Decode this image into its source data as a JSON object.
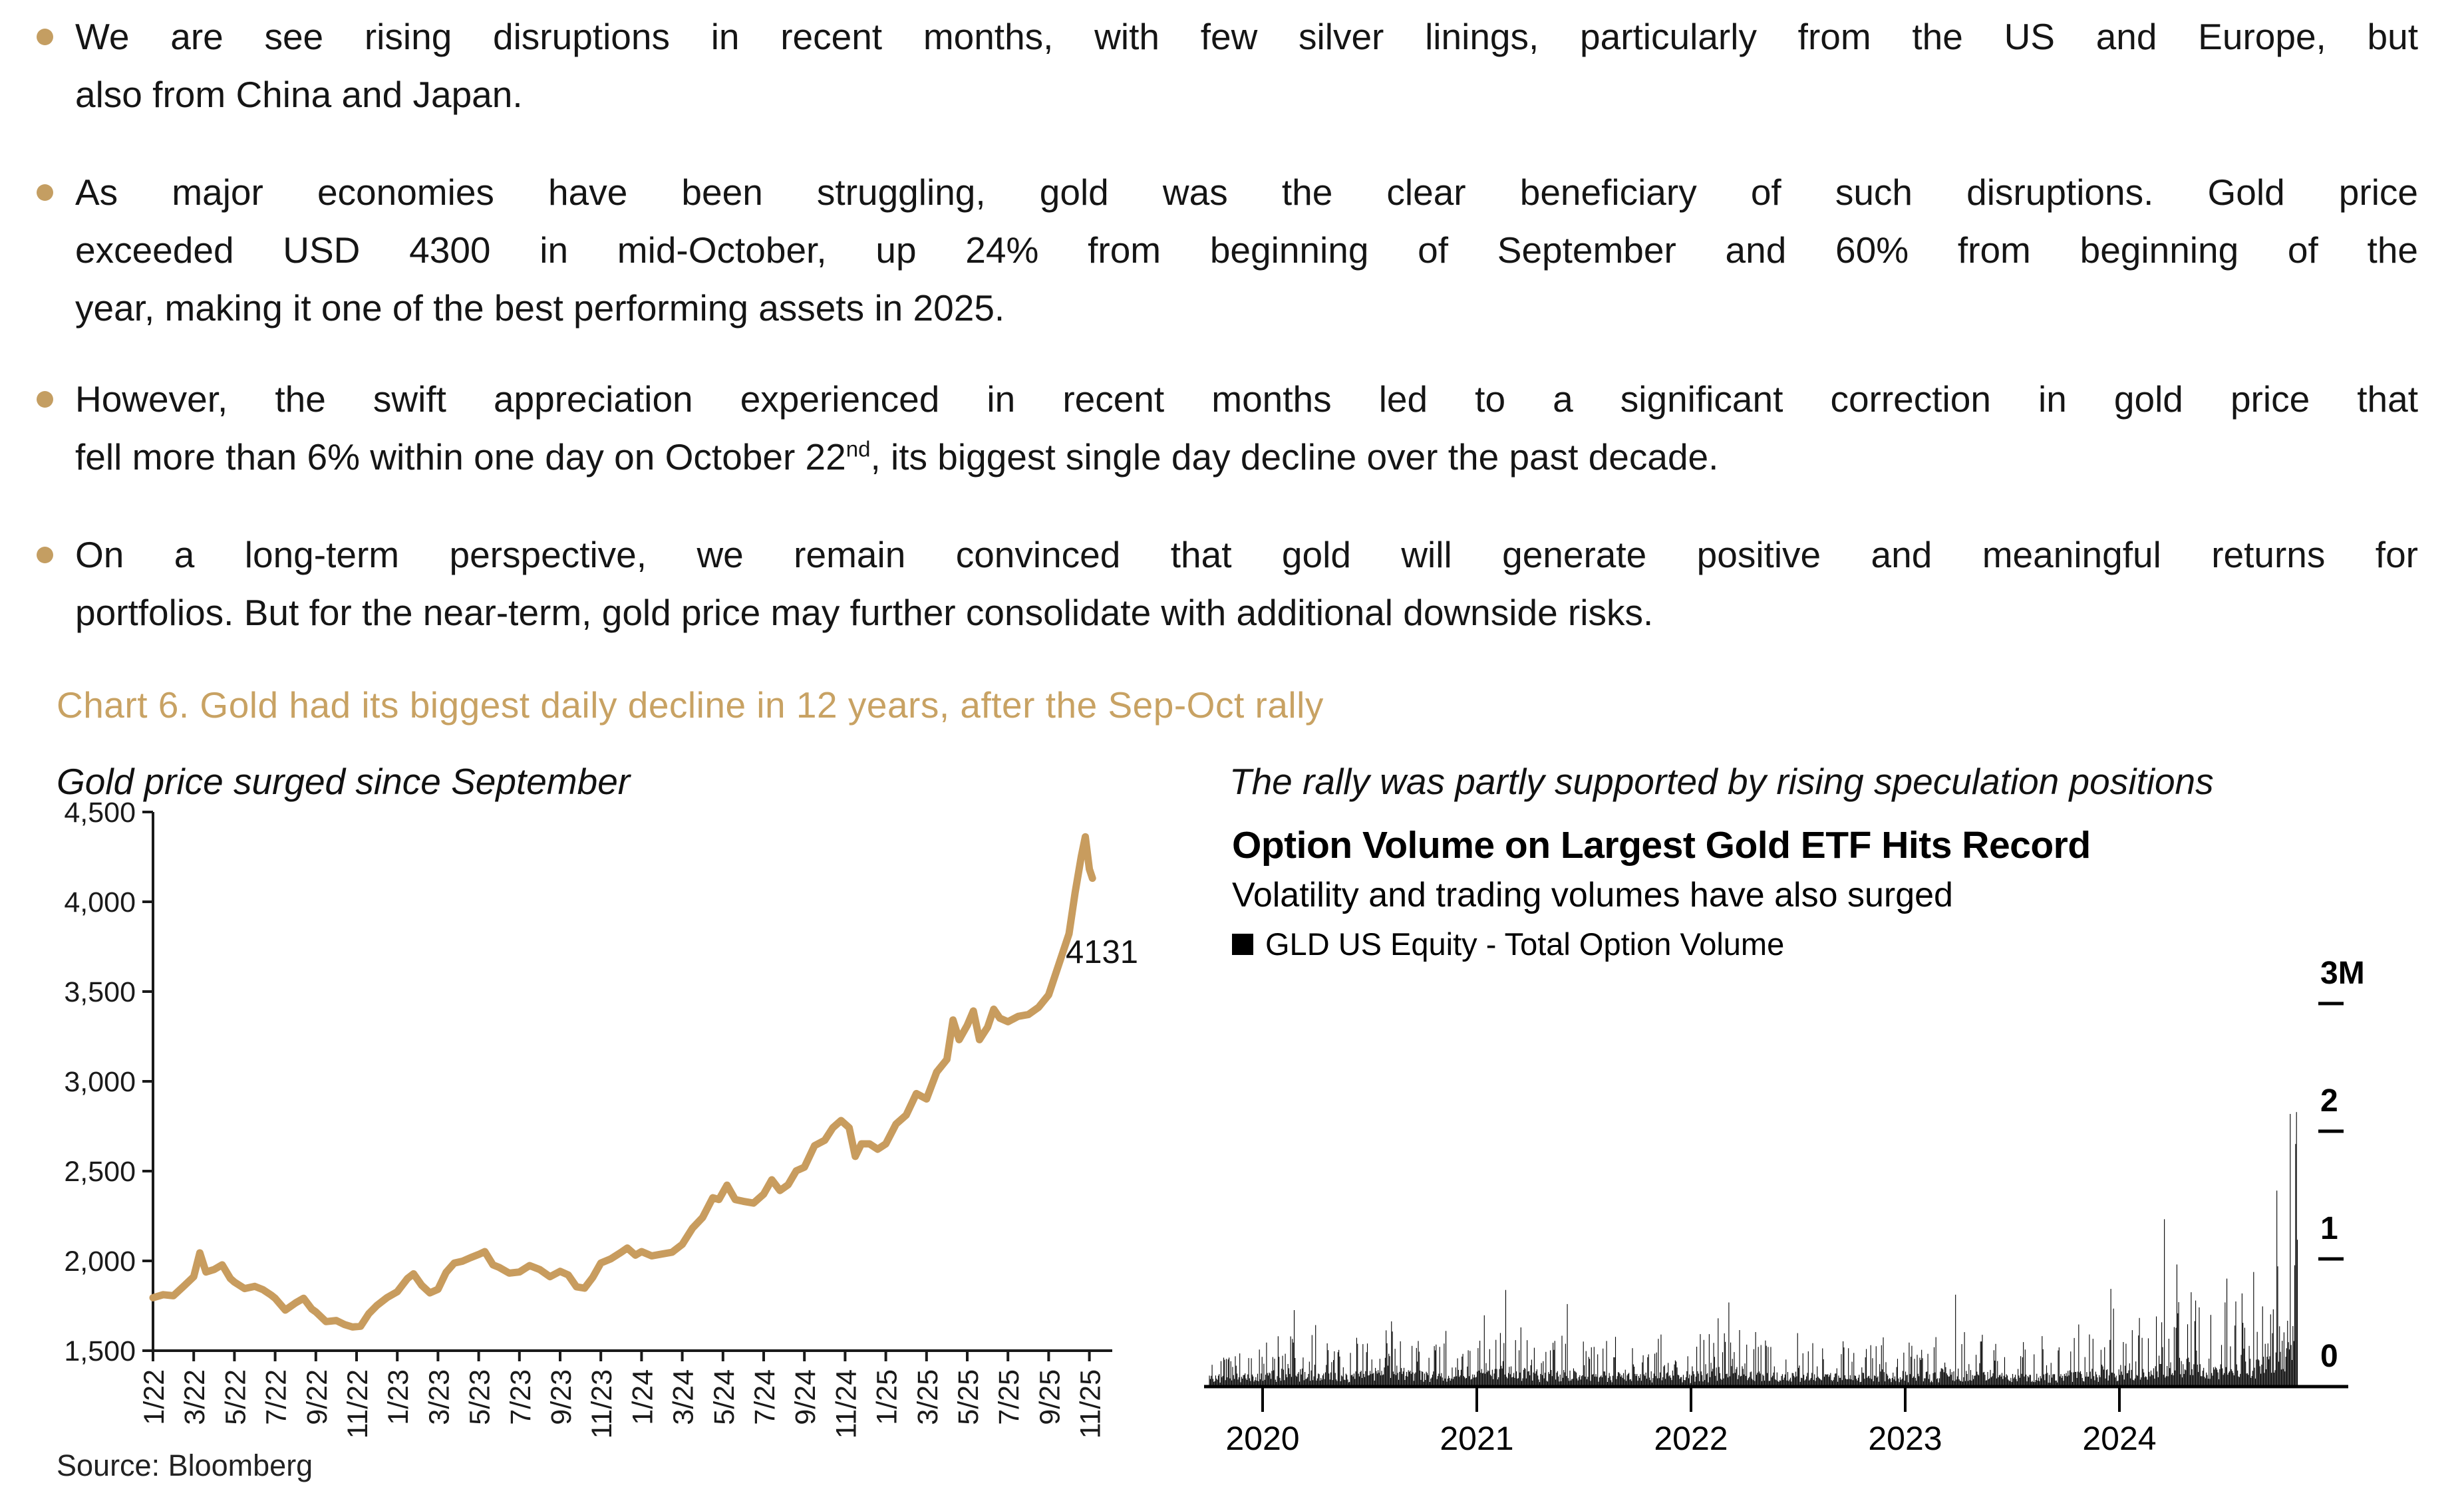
{
  "page": {
    "background": "#ffffff",
    "accent_gold": "#C49E62"
  },
  "bullets": [
    {
      "lines": [
        {
          "justify": true,
          "parts": [
            {
              "text": "We are see rising disruptions in recent months, with few silver linings, particularly from the US and Europe, but"
            }
          ]
        },
        {
          "justify": false,
          "parts": [
            {
              "text": "also from China and Japan."
            }
          ]
        }
      ]
    },
    {
      "lines": [
        {
          "justify": true,
          "parts": [
            {
              "text": "As major economies have been struggling, gold was the clear beneficiary of such disruptions. Gold price"
            }
          ]
        },
        {
          "justify": true,
          "parts": [
            {
              "text": "exceeded USD 4300 in mid-October, up 24% from beginning of September and 60% from beginning of the"
            }
          ]
        },
        {
          "justify": false,
          "parts": [
            {
              "text": "year, making it one of the best performing assets in 2025."
            }
          ]
        }
      ]
    },
    {
      "lines": [
        {
          "justify": true,
          "parts": [
            {
              "text": "However, the swift appreciation experienced in recent months led to a significant correction in gold price that"
            }
          ]
        },
        {
          "justify": false,
          "parts": [
            {
              "text": "fell more than 6% within one day on October 22"
            },
            {
              "text": "nd",
              "sup": true
            },
            {
              "text": ", its biggest single day decline over the past decade."
            }
          ]
        }
      ]
    },
    {
      "lines": [
        {
          "justify": true,
          "parts": [
            {
              "text": "On a long-term perspective, we remain convinced that gold will generate positive and meaningful returns for"
            }
          ]
        },
        {
          "justify": false,
          "parts": [
            {
              "text": "portfolios. But for the near-term, gold price may further consolidate with additional downside risks."
            }
          ]
        }
      ]
    }
  ],
  "section_title": "Chart 6. Gold had its biggest daily decline in 12 years, after the Sep-Oct rally",
  "source": "Source: Bloomberg",
  "chart_data": [
    {
      "type": "line",
      "panel_caption": "Gold price surged since September",
      "title": "Gold price surged since September",
      "xlabel": "",
      "ylabel": "",
      "ylim": [
        1500,
        4500
      ],
      "ytick_values": [
        1500,
        2000,
        2500,
        3000,
        3500,
        4000,
        4500
      ],
      "ytick_labels": [
        "1,500",
        "2,000",
        "2,500",
        "3,000",
        "3,500",
        "4,000",
        "4,500"
      ],
      "xtick_labels": [
        "1/22",
        "3/22",
        "5/22",
        "7/22",
        "9/22",
        "11/22",
        "1/23",
        "3/23",
        "5/23",
        "7/23",
        "9/23",
        "11/23",
        "1/24",
        "3/24",
        "5/24",
        "7/24",
        "9/24",
        "11/24",
        "1/25",
        "3/25",
        "5/25",
        "7/25",
        "9/25",
        "11/25"
      ],
      "xtick_month_index": [
        0,
        2,
        4,
        6,
        8,
        10,
        12,
        14,
        16,
        18,
        20,
        22,
        24,
        26,
        28,
        30,
        32,
        34,
        36,
        38,
        40,
        42,
        44,
        46
      ],
      "last_value_label": "4131",
      "line_color": "#C89C5E",
      "axis_color": "#1a1a1a",
      "grid": false,
      "points_units": "[months since Jan 2022, USD per oz]",
      "points": [
        [
          0,
          1795
        ],
        [
          0.5,
          1812
        ],
        [
          1,
          1806
        ],
        [
          1.5,
          1858
        ],
        [
          2,
          1912
        ],
        [
          2.3,
          2045
        ],
        [
          2.6,
          1938
        ],
        [
          3,
          1952
        ],
        [
          3.4,
          1978
        ],
        [
          3.8,
          1902
        ],
        [
          4,
          1882
        ],
        [
          4.5,
          1846
        ],
        [
          5,
          1858
        ],
        [
          5.4,
          1840
        ],
        [
          5.8,
          1810
        ],
        [
          6,
          1792
        ],
        [
          6.5,
          1726
        ],
        [
          7,
          1766
        ],
        [
          7.4,
          1792
        ],
        [
          7.8,
          1732
        ],
        [
          8,
          1716
        ],
        [
          8.5,
          1662
        ],
        [
          9,
          1668
        ],
        [
          9.4,
          1646
        ],
        [
          9.8,
          1632
        ],
        [
          10.2,
          1636
        ],
        [
          10.6,
          1706
        ],
        [
          11,
          1752
        ],
        [
          11.5,
          1796
        ],
        [
          12,
          1828
        ],
        [
          12.5,
          1902
        ],
        [
          12.8,
          1928
        ],
        [
          13.2,
          1864
        ],
        [
          13.6,
          1822
        ],
        [
          14,
          1842
        ],
        [
          14.4,
          1936
        ],
        [
          14.8,
          1988
        ],
        [
          15.2,
          1998
        ],
        [
          15.6,
          2018
        ],
        [
          16,
          2036
        ],
        [
          16.3,
          2052
        ],
        [
          16.7,
          1978
        ],
        [
          17,
          1964
        ],
        [
          17.5,
          1932
        ],
        [
          18,
          1938
        ],
        [
          18.5,
          1974
        ],
        [
          19,
          1952
        ],
        [
          19.5,
          1912
        ],
        [
          20,
          1942
        ],
        [
          20.4,
          1922
        ],
        [
          20.8,
          1856
        ],
        [
          21.2,
          1848
        ],
        [
          21.6,
          1908
        ],
        [
          22,
          1988
        ],
        [
          22.5,
          2012
        ],
        [
          23,
          2048
        ],
        [
          23.3,
          2072
        ],
        [
          23.7,
          2032
        ],
        [
          24,
          2052
        ],
        [
          24.5,
          2028
        ],
        [
          25,
          2038
        ],
        [
          25.5,
          2048
        ],
        [
          26,
          2092
        ],
        [
          26.5,
          2182
        ],
        [
          27,
          2242
        ],
        [
          27.5,
          2352
        ],
        [
          27.8,
          2342
        ],
        [
          28.2,
          2422
        ],
        [
          28.6,
          2342
        ],
        [
          29,
          2332
        ],
        [
          29.5,
          2322
        ],
        [
          30,
          2372
        ],
        [
          30.4,
          2452
        ],
        [
          30.8,
          2392
        ],
        [
          31.2,
          2424
        ],
        [
          31.6,
          2502
        ],
        [
          32,
          2522
        ],
        [
          32.5,
          2642
        ],
        [
          33,
          2672
        ],
        [
          33.4,
          2742
        ],
        [
          33.8,
          2782
        ],
        [
          34.2,
          2742
        ],
        [
          34.5,
          2582
        ],
        [
          34.8,
          2652
        ],
        [
          35.2,
          2652
        ],
        [
          35.6,
          2622
        ],
        [
          36,
          2652
        ],
        [
          36.5,
          2762
        ],
        [
          37,
          2812
        ],
        [
          37.5,
          2932
        ],
        [
          38,
          2902
        ],
        [
          38.5,
          3052
        ],
        [
          39,
          3122
        ],
        [
          39.3,
          3342
        ],
        [
          39.6,
          3232
        ],
        [
          40,
          3312
        ],
        [
          40.3,
          3392
        ],
        [
          40.6,
          3232
        ],
        [
          41,
          3302
        ],
        [
          41.3,
          3402
        ],
        [
          41.6,
          3352
        ],
        [
          42,
          3332
        ],
        [
          42.5,
          3362
        ],
        [
          43,
          3372
        ],
        [
          43.5,
          3412
        ],
        [
          44,
          3482
        ],
        [
          44.5,
          3652
        ],
        [
          45,
          3822
        ],
        [
          45.3,
          4052
        ],
        [
          45.6,
          4252
        ],
        [
          45.8,
          4362
        ],
        [
          46,
          4182
        ],
        [
          46.15,
          4131
        ]
      ]
    },
    {
      "type": "bar",
      "panel_caption": "The rally was partly supported by rising speculation positions",
      "title": "Option Volume on Largest Gold ETF Hits Record",
      "subtitle": "Volatility and trading volumes have also surged",
      "legend": "GLD US Equity - Total Option Volume",
      "bar_color": "#000000",
      "axis_color": "#000000",
      "ylim_millions": [
        0,
        3
      ],
      "ytick_labels": [
        "3M",
        "2",
        "1",
        "0"
      ],
      "ytick_values": [
        3,
        2,
        1,
        0
      ],
      "year_tick_labels": [
        "2020",
        "2021",
        "2022",
        "2023",
        "2024"
      ],
      "seed": 987654321,
      "envelope_units": "[month, typical daily volume M, monthly max spike M]",
      "monthly_envelope": [
        [
          "10/19",
          0.09,
          0.24
        ],
        [
          "11/19",
          0.1,
          0.28
        ],
        [
          "12/19",
          0.1,
          0.3
        ],
        [
          "1/20",
          0.12,
          0.4
        ],
        [
          "2/20",
          0.14,
          0.62
        ],
        [
          "3/20",
          0.13,
          0.5
        ],
        [
          "4/20",
          0.11,
          0.34
        ],
        [
          "5/20",
          0.1,
          0.3
        ],
        [
          "6/20",
          0.12,
          0.42
        ],
        [
          "7/20",
          0.15,
          0.46
        ],
        [
          "8/20",
          0.16,
          0.55
        ],
        [
          "9/20",
          0.12,
          0.34
        ],
        [
          "10/20",
          0.11,
          0.3
        ],
        [
          "11/20",
          0.12,
          0.46
        ],
        [
          "12/20",
          0.1,
          0.28
        ],
        [
          "1/21",
          0.13,
          0.56
        ],
        [
          "2/21",
          0.16,
          0.76
        ],
        [
          "3/21",
          0.14,
          0.48
        ],
        [
          "4/21",
          0.11,
          0.32
        ],
        [
          "5/21",
          0.12,
          0.4
        ],
        [
          "6/21",
          0.13,
          0.65
        ],
        [
          "7/21",
          0.11,
          0.34
        ],
        [
          "8/21",
          0.11,
          0.4
        ],
        [
          "9/21",
          0.1,
          0.32
        ],
        [
          "10/21",
          0.1,
          0.28
        ],
        [
          "11/21",
          0.12,
          0.44
        ],
        [
          "12/21",
          0.09,
          0.26
        ],
        [
          "1/22",
          0.11,
          0.42
        ],
        [
          "2/22",
          0.14,
          0.58
        ],
        [
          "3/22",
          0.15,
          0.66
        ],
        [
          "4/22",
          0.12,
          0.44
        ],
        [
          "5/22",
          0.11,
          0.38
        ],
        [
          "6/22",
          0.11,
          0.42
        ],
        [
          "7/22",
          0.1,
          0.34
        ],
        [
          "8/22",
          0.1,
          0.32
        ],
        [
          "9/22",
          0.11,
          0.38
        ],
        [
          "10/22",
          0.1,
          0.3
        ],
        [
          "11/22",
          0.11,
          0.4
        ],
        [
          "12/22",
          0.09,
          0.28
        ],
        [
          "1/23",
          0.11,
          0.36
        ],
        [
          "2/23",
          0.11,
          0.4
        ],
        [
          "3/23",
          0.14,
          0.72
        ],
        [
          "4/23",
          0.12,
          0.46
        ],
        [
          "5/23",
          0.12,
          0.44
        ],
        [
          "6/23",
          0.1,
          0.36
        ],
        [
          "7/23",
          0.1,
          0.36
        ],
        [
          "8/23",
          0.11,
          0.4
        ],
        [
          "9/23",
          0.1,
          0.34
        ],
        [
          "10/23",
          0.12,
          0.5
        ],
        [
          "11/23",
          0.11,
          0.42
        ],
        [
          "12/23",
          0.13,
          0.78
        ],
        [
          "1/24",
          0.13,
          0.45
        ],
        [
          "2/24",
          0.14,
          0.55
        ],
        [
          "3/24",
          0.2,
          1.35
        ],
        [
          "4/24",
          0.22,
          1.0
        ],
        [
          "5/24",
          0.18,
          0.75
        ],
        [
          "6/24",
          0.16,
          0.7
        ],
        [
          "7/24",
          0.18,
          0.85
        ],
        [
          "8/24",
          0.2,
          0.95
        ],
        [
          "9/24",
          0.26,
          1.55
        ],
        [
          "10/24",
          0.34,
          2.15
        ]
      ],
      "final_spike_bars_millions": [
        0.95,
        1.9,
        2.15,
        1.15
      ],
      "record_value_millions": 2.15
    }
  ]
}
